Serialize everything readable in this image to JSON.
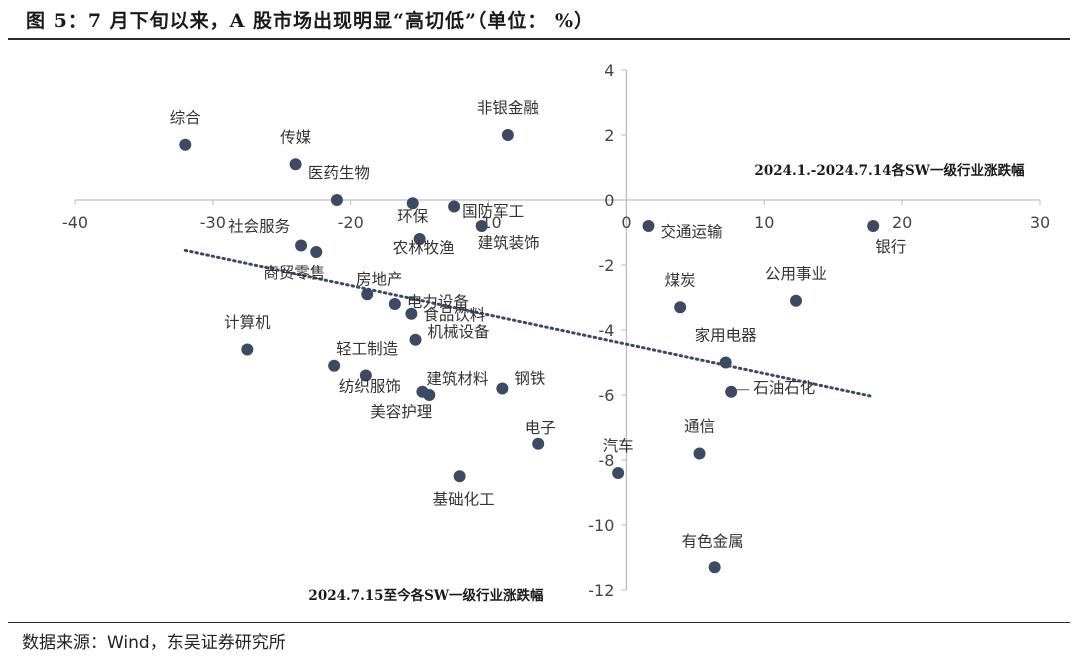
{
  "figure": {
    "title": "图 5：7 月下旬以来，A 股市场出现明显“高切低”（单位： %）",
    "source": "数据来源：Wind，东吴证券研究所"
  },
  "chart_data": {
    "type": "scatter",
    "xlim": [
      -40,
      30
    ],
    "ylim": [
      -12,
      4
    ],
    "x_ticks": [
      -40,
      -30,
      -20,
      -10,
      0,
      10,
      20,
      30
    ],
    "x_tick_labels": [
      "-40",
      "-30",
      "-20",
      "-10",
      "0",
      "10",
      "20",
      "30"
    ],
    "y_ticks": [
      4,
      2,
      0,
      -2,
      -4,
      -6,
      -8,
      -10,
      -12
    ],
    "y_tick_labels": [
      "4",
      "2",
      "0",
      "-2",
      "-4",
      "-6",
      "-8",
      "-10",
      "-12"
    ],
    "grid": false,
    "marker_color": "#3d4a63",
    "trendline_color": "#3d4a63",
    "x_axis_annotation": "2024.1.-2024.7.14各SW一级行业涨跌幅",
    "y_axis_annotation": "2024.7.15至今各SW一级行业涨跌幅",
    "trendline": {
      "x": [
        -32.0,
        17.9
      ],
      "y": [
        -1.55,
        -6.05
      ]
    },
    "points": [
      {
        "label": "综合",
        "x": -32.0,
        "y": 1.7
      },
      {
        "label": "传媒",
        "x": -24.0,
        "y": 1.1
      },
      {
        "label": "非银金融",
        "x": -8.6,
        "y": 2.0
      },
      {
        "label": "医药生物",
        "x": -21.0,
        "y": 0.0
      },
      {
        "label": "环保",
        "x": -15.5,
        "y": -0.1
      },
      {
        "label": "国防军工",
        "x": -12.5,
        "y": -0.2
      },
      {
        "label": "建筑装饰",
        "x": -10.5,
        "y": -0.8
      },
      {
        "label": "交通运输",
        "x": 1.6,
        "y": -0.8
      },
      {
        "label": "银行",
        "x": 17.9,
        "y": -0.8
      },
      {
        "label": "社会服务",
        "x": -23.6,
        "y": -1.4
      },
      {
        "label": "商贸零售",
        "x": -22.5,
        "y": -1.6
      },
      {
        "label": "农林牧渔",
        "x": -15.0,
        "y": -1.2
      },
      {
        "label": "房地产",
        "x": -18.8,
        "y": -2.9
      },
      {
        "label": "电力设备",
        "x": -16.8,
        "y": -3.2
      },
      {
        "label": "食品饮料",
        "x": -15.6,
        "y": -3.5
      },
      {
        "label": "机械设备",
        "x": -15.3,
        "y": -4.3
      },
      {
        "label": "计算机",
        "x": -27.5,
        "y": -4.6
      },
      {
        "label": "轻工制造",
        "x": -21.2,
        "y": -5.1
      },
      {
        "label": "纺织服饰",
        "x": -18.9,
        "y": -5.4
      },
      {
        "label": "建筑材料",
        "x": -14.8,
        "y": -5.9
      },
      {
        "label": "美容护理",
        "x": -14.3,
        "y": -6.0
      },
      {
        "label": "钢铁",
        "x": -9.0,
        "y": -5.8
      },
      {
        "label": "煤炭",
        "x": 3.9,
        "y": -3.3
      },
      {
        "label": "公用事业",
        "x": 12.3,
        "y": -3.1
      },
      {
        "label": "家用电器",
        "x": 7.2,
        "y": -5.0
      },
      {
        "label": "石油石化",
        "x": 7.6,
        "y": -5.9
      },
      {
        "label": "电子",
        "x": -6.4,
        "y": -7.5
      },
      {
        "label": "通信",
        "x": 5.3,
        "y": -7.8
      },
      {
        "label": "汽车",
        "x": -0.6,
        "y": -8.4
      },
      {
        "label": "基础化工",
        "x": -12.1,
        "y": -8.5
      },
      {
        "label": "有色金属",
        "x": 6.4,
        "y": -11.3
      }
    ]
  }
}
